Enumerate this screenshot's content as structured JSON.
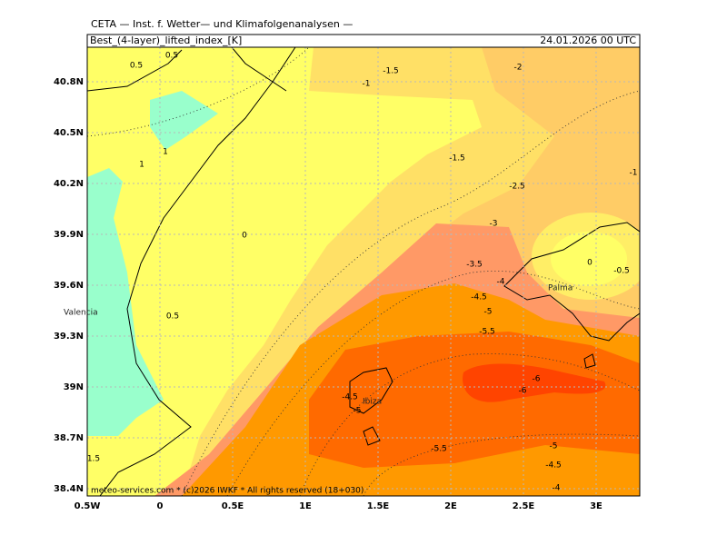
{
  "header": {
    "title": "CETA — Inst. f. Wetter— und Klimafolgenanalysen —",
    "field": "Best_(4-layer)_lifted_index_[K]",
    "datetime": "24.01.2026 00 UTC"
  },
  "footer": {
    "copyright": "meteo-services.com * (c)2026 IWKF * All rights reserved (18+030)"
  },
  "axes": {
    "lat_labels": [
      "40.8N",
      "40.5N",
      "40.2N",
      "39.9N",
      "39.6N",
      "39.3N",
      "39N",
      "38.7N",
      "38.4N"
    ],
    "lon_labels": [
      "0.5W",
      "0",
      "0.5E",
      "1E",
      "1.5E",
      "2E",
      "2.5E",
      "3E"
    ]
  },
  "places": [
    "Valencia",
    "Ibiza",
    "Palma"
  ],
  "contour_labels": [
    "0.5",
    "0.5",
    "-1.5",
    "-2",
    "-1",
    "1",
    "1",
    "-1.5",
    "-1",
    "-2.5",
    "0",
    "-3",
    "0",
    "-0.5",
    "-3.5",
    "-4",
    "-4.5",
    "-5",
    "0.5",
    "-5.5",
    "-6",
    "-6",
    "-4.5",
    "-5",
    "-5.5",
    "-5",
    "-4.5",
    "1.5",
    "-4"
  ]
}
